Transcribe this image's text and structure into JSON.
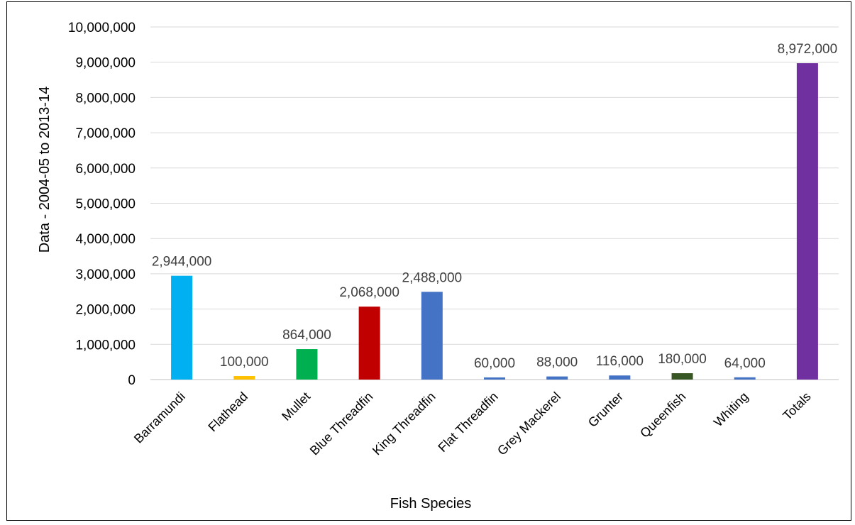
{
  "chart_data": {
    "type": "bar",
    "title": "",
    "xlabel": "Fish Species",
    "ylabel": "Data - 2004-05 to 2013-14",
    "ylim": [
      0,
      10000000
    ],
    "y_ticks": [
      {
        "value": 0,
        "label": "0"
      },
      {
        "value": 1000000,
        "label": "1,000,000"
      },
      {
        "value": 2000000,
        "label": "2,000,000"
      },
      {
        "value": 3000000,
        "label": "3,000,000"
      },
      {
        "value": 4000000,
        "label": "4,000,000"
      },
      {
        "value": 5000000,
        "label": "5,000,000"
      },
      {
        "value": 6000000,
        "label": "6,000,000"
      },
      {
        "value": 7000000,
        "label": "7,000,000"
      },
      {
        "value": 8000000,
        "label": "8,000,000"
      },
      {
        "value": 9000000,
        "label": "9,000,000"
      },
      {
        "value": 10000000,
        "label": "10,000,000"
      }
    ],
    "grid": true,
    "legend": "none",
    "bars": [
      {
        "category": "Barramundi",
        "value": 2944000,
        "label": "2,944,000",
        "color": "#00b0f0"
      },
      {
        "category": "Flathead",
        "value": 100000,
        "label": "100,000",
        "color": "#ffc000"
      },
      {
        "category": "Mullet",
        "value": 864000,
        "label": "864,000",
        "color": "#00b050"
      },
      {
        "category": "Blue Threadfin",
        "value": 2068000,
        "label": "2,068,000",
        "color": "#c00000"
      },
      {
        "category": "King Threadfin",
        "value": 2488000,
        "label": "2,488,000",
        "color": "#4472c4"
      },
      {
        "category": "Flat Threadfin",
        "value": 60000,
        "label": "60,000",
        "color": "#4472c4"
      },
      {
        "category": "Grey Mackerel",
        "value": 88000,
        "label": "88,000",
        "color": "#4472c4"
      },
      {
        "category": "Grunter",
        "value": 116000,
        "label": "116,000",
        "color": "#4472c4"
      },
      {
        "category": "Queenfish",
        "value": 180000,
        "label": "180,000",
        "color": "#375623"
      },
      {
        "category": "Whiting",
        "value": 64000,
        "label": "64,000",
        "color": "#4472c4"
      },
      {
        "category": "Totals",
        "value": 8972000,
        "label": "8,972,000",
        "color": "#7030a0"
      }
    ]
  }
}
